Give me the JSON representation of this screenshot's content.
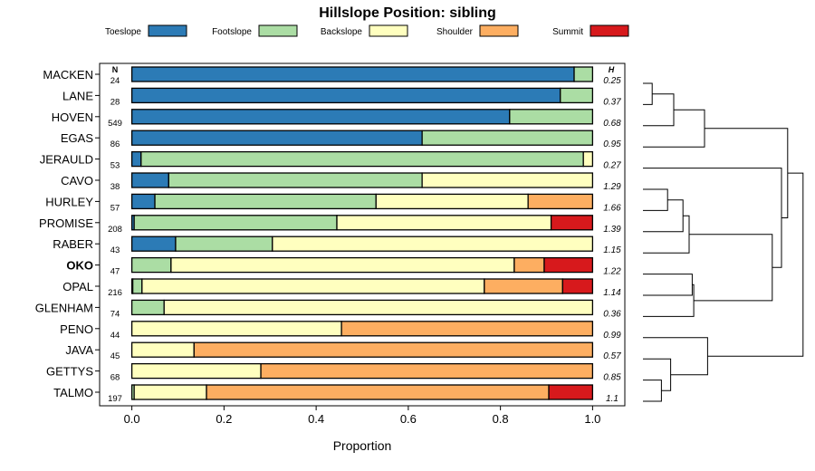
{
  "chart_data": {
    "type": "bar",
    "stacked": true,
    "orientation": "horizontal",
    "title": "Hillslope Position: sibling",
    "xlabel": "Proportion",
    "ylabel": "",
    "xlim": [
      -0.07,
      1.07
    ],
    "x_ticks": [
      "0.0",
      "0.2",
      "0.4",
      "0.6",
      "0.8",
      "1.0"
    ],
    "highlighted_category": "OKO",
    "n_header": "N",
    "h_header": "H",
    "series": [
      {
        "name": "Toeslope",
        "color": "#2c7bb6"
      },
      {
        "name": "Footslope",
        "color": "#abdda4"
      },
      {
        "name": "Backslope",
        "color": "#ffffbf"
      },
      {
        "name": "Shoulder",
        "color": "#fdae61"
      },
      {
        "name": "Summit",
        "color": "#d7191c"
      }
    ],
    "rows": [
      {
        "name": "MACKEN",
        "n": "24",
        "h": "0.25",
        "values": [
          0.96,
          0.04,
          0,
          0,
          0
        ]
      },
      {
        "name": "LANE",
        "n": "28",
        "h": "0.37",
        "values": [
          0.93,
          0.07,
          0,
          0,
          0
        ]
      },
      {
        "name": "HOVEN",
        "n": "549",
        "h": "0.68",
        "values": [
          0.82,
          0.18,
          0,
          0,
          0
        ]
      },
      {
        "name": "EGAS",
        "n": "86",
        "h": "0.95",
        "values": [
          0.63,
          0.37,
          0,
          0,
          0
        ]
      },
      {
        "name": "JERAULD",
        "n": "53",
        "h": "0.27",
        "values": [
          0.02,
          0.96,
          0.02,
          0,
          0
        ]
      },
      {
        "name": "CAVO",
        "n": "38",
        "h": "1.29",
        "values": [
          0.08,
          0.55,
          0.37,
          0,
          0
        ]
      },
      {
        "name": "HURLEY",
        "n": "57",
        "h": "1.66",
        "values": [
          0.05,
          0.48,
          0.33,
          0.14,
          0
        ]
      },
      {
        "name": "PROMISE",
        "n": "208",
        "h": "1.39",
        "values": [
          0.005,
          0.44,
          0.465,
          0,
          0.09
        ]
      },
      {
        "name": "RABER",
        "n": "43",
        "h": "1.15",
        "values": [
          0.095,
          0.21,
          0.695,
          0,
          0
        ]
      },
      {
        "name": "OKO",
        "n": "47",
        "h": "1.22",
        "values": [
          0,
          0.085,
          0.745,
          0.065,
          0.105
        ]
      },
      {
        "name": "OPAL",
        "n": "216",
        "h": "1.14",
        "values": [
          0.002,
          0.02,
          0.743,
          0.17,
          0.065
        ]
      },
      {
        "name": "GLENHAM",
        "n": "74",
        "h": "0.36",
        "values": [
          0,
          0.07,
          0.93,
          0,
          0
        ]
      },
      {
        "name": "PENO",
        "n": "44",
        "h": "0.99",
        "values": [
          0,
          0,
          0.455,
          0.545,
          0
        ]
      },
      {
        "name": "JAVA",
        "n": "45",
        "h": "0.57",
        "values": [
          0,
          0,
          0.135,
          0.865,
          0
        ]
      },
      {
        "name": "GETTYS",
        "n": "68",
        "h": "0.85",
        "values": [
          0,
          0,
          0.28,
          0.72,
          0
        ]
      },
      {
        "name": "TALMO",
        "n": "197",
        "h": "1.1",
        "values": [
          0,
          0.005,
          0.157,
          0.743,
          0.095
        ]
      }
    ],
    "dendrogram": {
      "note": "hierarchical clustering of rows; merge heights in arbitrary distance units",
      "merges": [
        {
          "id": "m0",
          "left": "MACKEN",
          "right": "LANE",
          "height": 0.3
        },
        {
          "id": "m1",
          "left": "m0",
          "right": "HOVEN",
          "height": 1.0
        },
        {
          "id": "m2",
          "left": "m1",
          "right": "EGAS",
          "height": 2.0
        },
        {
          "id": "m3",
          "left": "CAVO",
          "right": "HURLEY",
          "height": 0.8
        },
        {
          "id": "m4",
          "left": "m3",
          "right": "PROMISE",
          "height": 1.3
        },
        {
          "id": "m5",
          "left": "m4",
          "right": "RABER",
          "height": 1.5
        },
        {
          "id": "m6",
          "left": "OKO",
          "right": "OPAL",
          "height": 1.6
        },
        {
          "id": "m7",
          "left": "m6",
          "right": "GLENHAM",
          "height": 1.65
        },
        {
          "id": "m8",
          "left": "m5",
          "right": "m7",
          "height": 4.2
        },
        {
          "id": "m9",
          "left": "JERAULD",
          "right": "m8",
          "height": 4.5
        },
        {
          "id": "m10",
          "left": "m2",
          "right": "m9",
          "height": 4.7
        },
        {
          "id": "m11",
          "left": "GETTYS",
          "right": "TALMO",
          "height": 0.6
        },
        {
          "id": "m12",
          "left": "JAVA",
          "right": "m11",
          "height": 0.9
        },
        {
          "id": "m13",
          "left": "PENO",
          "right": "m12",
          "height": 2.1
        },
        {
          "id": "m14",
          "left": "m10",
          "right": "m13",
          "height": 5.2
        }
      ]
    }
  }
}
